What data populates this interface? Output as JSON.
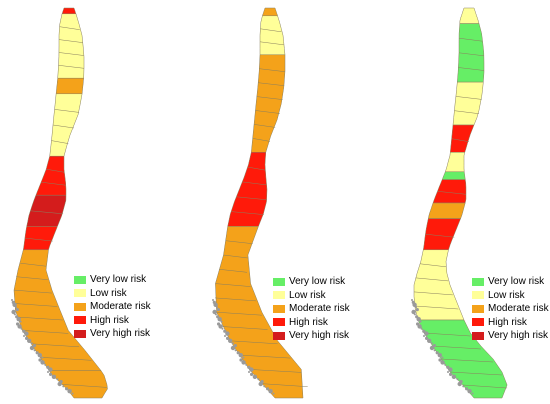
{
  "legend": {
    "items": [
      {
        "label": "Very low risk",
        "color": "#66ee66"
      },
      {
        "label": "Low risk",
        "color": "#ffff99"
      },
      {
        "label": "Moderate risk",
        "color": "#f4a21a"
      },
      {
        "label": "High risk",
        "color": "#ff1a0a"
      },
      {
        "label": "Very high risk",
        "color": "#d41c1c"
      }
    ]
  },
  "colors": {
    "border": "#8a8060",
    "coast_grey": "#9a9a9a"
  },
  "maps": [
    {
      "id": "map-1",
      "bands": [
        {
          "level": "high",
          "from": 0.0,
          "to": 0.015
        },
        {
          "level": "low",
          "from": 0.015,
          "to": 0.18
        },
        {
          "level": "moderate",
          "from": 0.18,
          "to": 0.22
        },
        {
          "level": "low",
          "from": 0.22,
          "to": 0.38
        },
        {
          "level": "high",
          "from": 0.38,
          "to": 0.48
        },
        {
          "level": "very_high",
          "from": 0.48,
          "to": 0.56
        },
        {
          "level": "high",
          "from": 0.56,
          "to": 0.62
        },
        {
          "level": "moderate",
          "from": 0.62,
          "to": 0.93
        },
        {
          "level": "moderate",
          "from": 0.93,
          "to": 1.0
        }
      ]
    },
    {
      "id": "map-2",
      "bands": [
        {
          "level": "moderate",
          "from": 0.0,
          "to": 0.02
        },
        {
          "level": "low",
          "from": 0.02,
          "to": 0.12
        },
        {
          "level": "moderate",
          "from": 0.12,
          "to": 0.37
        },
        {
          "level": "high",
          "from": 0.37,
          "to": 0.56
        },
        {
          "level": "moderate",
          "from": 0.56,
          "to": 1.0
        }
      ]
    },
    {
      "id": "map-3",
      "bands": [
        {
          "level": "low",
          "from": 0.0,
          "to": 0.04
        },
        {
          "level": "very_low",
          "from": 0.04,
          "to": 0.19
        },
        {
          "level": "low",
          "from": 0.19,
          "to": 0.3
        },
        {
          "level": "high",
          "from": 0.3,
          "to": 0.37
        },
        {
          "level": "low",
          "from": 0.37,
          "to": 0.42
        },
        {
          "level": "very_low",
          "from": 0.42,
          "to": 0.44
        },
        {
          "level": "high",
          "from": 0.44,
          "to": 0.5
        },
        {
          "level": "moderate",
          "from": 0.5,
          "to": 0.54
        },
        {
          "level": "high",
          "from": 0.54,
          "to": 0.62
        },
        {
          "level": "low",
          "from": 0.62,
          "to": 0.8
        },
        {
          "level": "very_low",
          "from": 0.8,
          "to": 1.0
        }
      ]
    }
  ]
}
